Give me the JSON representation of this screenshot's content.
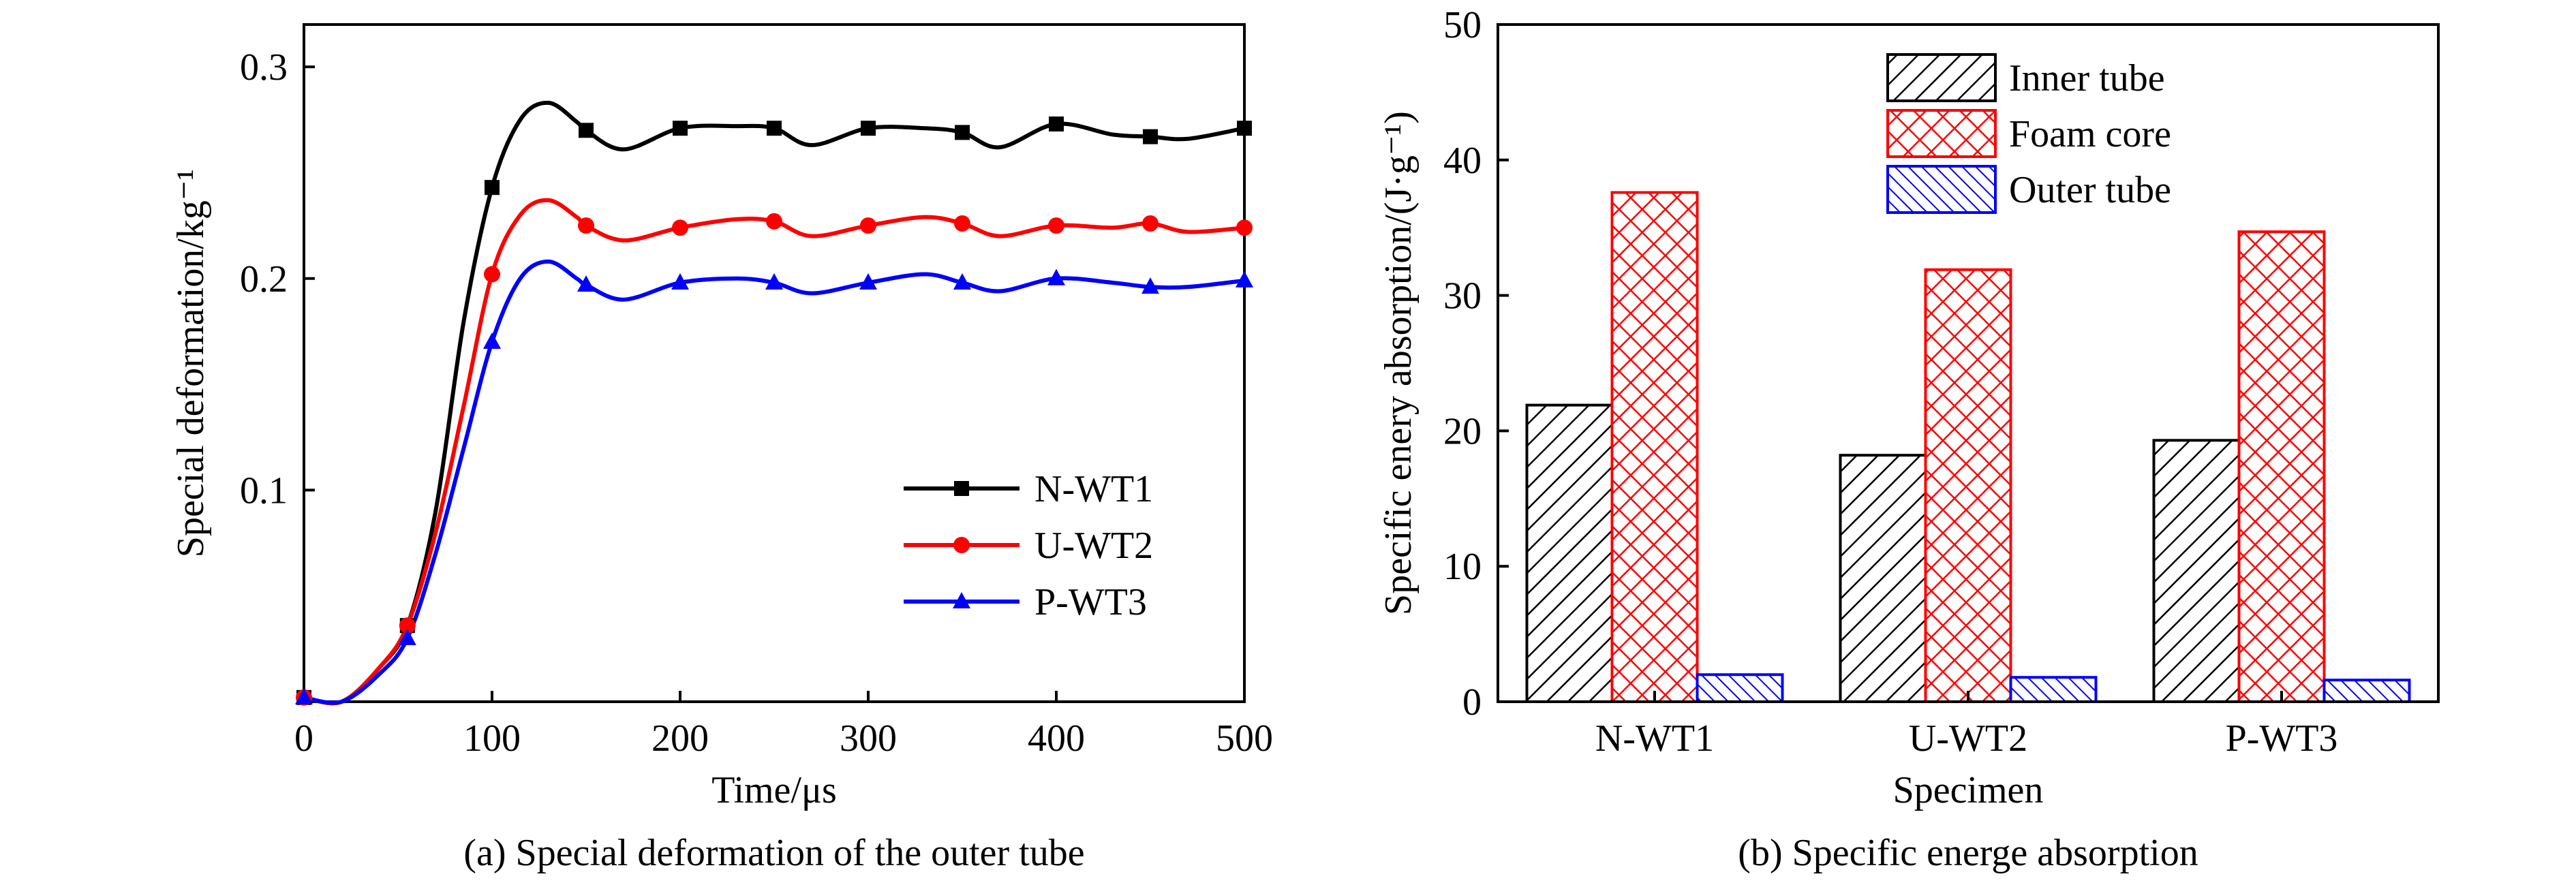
{
  "chart_data": [
    {
      "type": "line",
      "caption": "(a) Special deformation of the outer tube",
      "xlabel": "Time/μs",
      "ylabel": "Special deformation/kg⁻¹",
      "xlim": [
        0,
        500
      ],
      "ylim": [
        0,
        0.32
      ],
      "xticks": [
        0,
        100,
        200,
        300,
        400,
        500
      ],
      "xtick_labels": [
        "0",
        "100",
        "200",
        "300",
        "400",
        "500"
      ],
      "yticks": [
        0.1,
        0.2,
        0.3
      ],
      "ytick_labels": [
        "0.1",
        "0.2",
        "0.3"
      ],
      "grid": false,
      "legend_position": "lower-right",
      "series": [
        {
          "name": "N-WT1",
          "color": "#000000",
          "marker": "square",
          "x": [
            0,
            20,
            40,
            55,
            70,
            85,
            100,
            115,
            130,
            145,
            150,
            170,
            200,
            230,
            250,
            270,
            300,
            330,
            350,
            370,
            400,
            430,
            450,
            470,
            500
          ],
          "y": [
            0.002,
            0.0,
            0.016,
            0.036,
            0.09,
            0.18,
            0.243,
            0.275,
            0.283,
            0.274,
            0.27,
            0.261,
            0.271,
            0.272,
            0.271,
            0.263,
            0.271,
            0.271,
            0.269,
            0.262,
            0.273,
            0.268,
            0.267,
            0.266,
            0.271
          ],
          "marker_x": [
            0,
            55,
            100,
            150,
            200,
            250,
            300,
            350,
            400,
            450,
            500
          ],
          "marker_y": [
            0.002,
            0.036,
            0.243,
            0.27,
            0.271,
            0.271,
            0.271,
            0.269,
            0.273,
            0.267,
            0.271
          ]
        },
        {
          "name": "U-WT2",
          "color": "#ff0000",
          "marker": "circle",
          "x": [
            0,
            20,
            40,
            55,
            70,
            85,
            100,
            115,
            130,
            145,
            150,
            170,
            200,
            230,
            250,
            270,
            300,
            330,
            350,
            370,
            400,
            430,
            450,
            470,
            500
          ],
          "y": [
            0.002,
            0.0,
            0.016,
            0.036,
            0.08,
            0.14,
            0.202,
            0.23,
            0.237,
            0.229,
            0.225,
            0.218,
            0.224,
            0.228,
            0.227,
            0.22,
            0.225,
            0.229,
            0.226,
            0.22,
            0.225,
            0.224,
            0.226,
            0.222,
            0.224
          ],
          "marker_x": [
            0,
            55,
            100,
            150,
            200,
            250,
            300,
            350,
            400,
            450,
            500
          ],
          "marker_y": [
            0.002,
            0.036,
            0.202,
            0.225,
            0.224,
            0.227,
            0.225,
            0.226,
            0.225,
            0.226,
            0.224
          ]
        },
        {
          "name": "P-WT3",
          "color": "#0000ff",
          "marker": "triangle",
          "x": [
            0,
            20,
            40,
            55,
            70,
            85,
            100,
            115,
            130,
            145,
            150,
            170,
            200,
            230,
            250,
            270,
            300,
            330,
            350,
            370,
            400,
            430,
            450,
            470,
            500
          ],
          "y": [
            0.002,
            0.0,
            0.013,
            0.03,
            0.07,
            0.12,
            0.17,
            0.2,
            0.208,
            0.2,
            0.197,
            0.19,
            0.198,
            0.2,
            0.198,
            0.193,
            0.198,
            0.202,
            0.198,
            0.194,
            0.2,
            0.198,
            0.196,
            0.196,
            0.199
          ],
          "marker_x": [
            0,
            55,
            100,
            150,
            200,
            250,
            300,
            350,
            400,
            450,
            500
          ],
          "marker_y": [
            0.002,
            0.03,
            0.17,
            0.197,
            0.198,
            0.198,
            0.198,
            0.198,
            0.2,
            0.196,
            0.199
          ]
        }
      ]
    },
    {
      "type": "bar",
      "caption": "(b) Specific energe absorption",
      "xlabel": "Specimen",
      "ylabel": "Specific enery absorption/(J·g⁻¹)",
      "ylim": [
        0,
        50
      ],
      "yticks": [
        0,
        10,
        20,
        30,
        40,
        50
      ],
      "ytick_labels": [
        "0",
        "10",
        "20",
        "30",
        "40",
        "50"
      ],
      "categories": [
        "N-WT1",
        "U-WT2",
        "P-WT3"
      ],
      "grid": false,
      "legend_position": "top-center",
      "series": [
        {
          "name": "Inner tube",
          "color": "#000000",
          "fill": "#ffffff",
          "pattern": "diagonal-hatch",
          "values": [
            21.9,
            18.2,
            19.3
          ]
        },
        {
          "name": "Foam core",
          "color": "#ff0000",
          "fill": "#ffffff",
          "pattern": "crosshatch",
          "values": [
            37.6,
            31.9,
            34.7
          ]
        },
        {
          "name": "Outer tube",
          "color": "#0000ff",
          "fill": "#ffffff",
          "pattern": "diagonal-hatch",
          "values": [
            2.0,
            1.8,
            1.6
          ]
        }
      ]
    }
  ]
}
